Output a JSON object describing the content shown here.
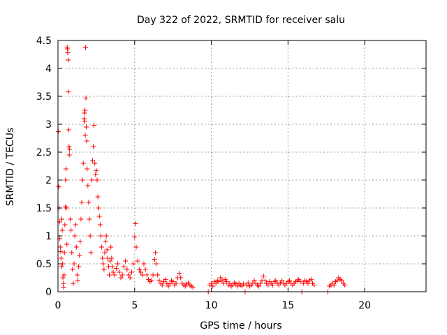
{
  "chart_data": {
    "type": "scatter",
    "title": "Day 322 of 2022, SRMTID for receiver salu",
    "xlabel": "GPS time / hours",
    "ylabel": "SRMTID / TECUs",
    "xlim": [
      0,
      24
    ],
    "ylim": [
      0,
      4.5
    ],
    "xticks": [
      0,
      5,
      10,
      15,
      20
    ],
    "yticks": [
      0,
      0.5,
      1,
      1.5,
      2,
      2.5,
      3,
      3.5,
      4,
      4.5
    ],
    "grid": true,
    "marker": "+",
    "series_color": "#ff0000",
    "series": [
      {
        "name": "SRMTID",
        "points": [
          [
            0.02,
            2.87
          ],
          [
            0.05,
            1.88
          ],
          [
            0.08,
            1.5
          ],
          [
            0.1,
            1.25
          ],
          [
            0.12,
            0.95
          ],
          [
            0.15,
            0.8
          ],
          [
            0.18,
            0.72
          ],
          [
            0.2,
            0.6
          ],
          [
            0.22,
            0.45
          ],
          [
            0.25,
            1.3
          ],
          [
            0.28,
            1.1
          ],
          [
            0.3,
            0.5
          ],
          [
            0.32,
            0.25
          ],
          [
            0.35,
            0.15
          ],
          [
            0.38,
            0.08
          ],
          [
            0.4,
            0.3
          ],
          [
            0.42,
            0.7
          ],
          [
            0.45,
            1.2
          ],
          [
            0.48,
            1.52
          ],
          [
            0.5,
            2.0
          ],
          [
            0.52,
            2.2
          ],
          [
            0.55,
            1.5
          ],
          [
            0.58,
            0.85
          ],
          [
            0.6,
            4.38
          ],
          [
            0.62,
            4.35
          ],
          [
            0.64,
            4.28
          ],
          [
            0.66,
            4.15
          ],
          [
            0.68,
            3.58
          ],
          [
            0.7,
            2.9
          ],
          [
            0.72,
            2.6
          ],
          [
            0.74,
            2.45
          ],
          [
            0.76,
            2.55
          ],
          [
            0.8,
            1.3
          ],
          [
            0.85,
            1.1
          ],
          [
            0.9,
            0.7
          ],
          [
            0.95,
            0.4
          ],
          [
            1.0,
            0.15
          ],
          [
            1.05,
            0.5
          ],
          [
            1.1,
            1.0
          ],
          [
            1.15,
            1.2
          ],
          [
            1.2,
            0.8
          ],
          [
            1.25,
            0.3
          ],
          [
            1.3,
            0.2
          ],
          [
            1.35,
            0.45
          ],
          [
            1.4,
            0.65
          ],
          [
            1.45,
            0.9
          ],
          [
            1.5,
            1.3
          ],
          [
            1.55,
            1.6
          ],
          [
            1.6,
            2.0
          ],
          [
            1.65,
            2.3
          ],
          [
            1.7,
            3.1
          ],
          [
            1.72,
            3.2
          ],
          [
            1.74,
            3.05
          ],
          [
            1.76,
            3.25
          ],
          [
            1.78,
            2.8
          ],
          [
            1.8,
            4.37
          ],
          [
            1.82,
            3.47
          ],
          [
            1.85,
            2.95
          ],
          [
            1.88,
            2.7
          ],
          [
            1.9,
            2.2
          ],
          [
            1.95,
            1.9
          ],
          [
            2.0,
            1.6
          ],
          [
            2.05,
            1.3
          ],
          [
            2.1,
            1.0
          ],
          [
            2.15,
            0.7
          ],
          [
            2.2,
            2.0
          ],
          [
            2.25,
            2.35
          ],
          [
            2.3,
            2.6
          ],
          [
            2.35,
            2.98
          ],
          [
            2.4,
            2.3
          ],
          [
            2.45,
            2.1
          ],
          [
            2.5,
            2.17
          ],
          [
            2.55,
            2.0
          ],
          [
            2.6,
            1.7
          ],
          [
            2.65,
            1.5
          ],
          [
            2.7,
            1.35
          ],
          [
            2.75,
            1.2
          ],
          [
            2.8,
            1.0
          ],
          [
            2.85,
            0.8
          ],
          [
            2.9,
            0.6
          ],
          [
            2.95,
            0.5
          ],
          [
            3.0,
            0.4
          ],
          [
            3.05,
            0.7
          ],
          [
            3.1,
            0.9
          ],
          [
            3.15,
            1.0
          ],
          [
            3.2,
            0.75
          ],
          [
            3.25,
            0.6
          ],
          [
            3.3,
            0.45
          ],
          [
            3.35,
            0.3
          ],
          [
            3.4,
            0.55
          ],
          [
            3.45,
            0.8
          ],
          [
            3.5,
            0.6
          ],
          [
            3.55,
            0.45
          ],
          [
            3.6,
            0.35
          ],
          [
            3.7,
            0.3
          ],
          [
            3.8,
            0.42
          ],
          [
            3.9,
            0.5
          ],
          [
            4.0,
            0.35
          ],
          [
            4.1,
            0.25
          ],
          [
            4.2,
            0.3
          ],
          [
            4.3,
            0.45
          ],
          [
            4.4,
            0.55
          ],
          [
            4.5,
            0.4
          ],
          [
            4.6,
            0.3
          ],
          [
            4.7,
            0.25
          ],
          [
            4.8,
            0.35
          ],
          [
            4.9,
            0.5
          ],
          [
            5.0,
            0.98
          ],
          [
            5.05,
            1.22
          ],
          [
            5.1,
            0.8
          ],
          [
            5.2,
            0.55
          ],
          [
            5.3,
            0.4
          ],
          [
            5.4,
            0.35
          ],
          [
            5.5,
            0.3
          ],
          [
            5.6,
            0.5
          ],
          [
            5.7,
            0.4
          ],
          [
            5.8,
            0.3
          ],
          [
            5.9,
            0.22
          ],
          [
            6.0,
            0.18
          ],
          [
            6.1,
            0.2
          ],
          [
            6.2,
            0.3
          ],
          [
            6.3,
            0.58
          ],
          [
            6.35,
            0.7
          ],
          [
            6.4,
            0.5
          ],
          [
            6.5,
            0.3
          ],
          [
            6.6,
            0.2
          ],
          [
            6.7,
            0.15
          ],
          [
            6.8,
            0.12
          ],
          [
            6.9,
            0.18
          ],
          [
            7.0,
            0.22
          ],
          [
            7.1,
            0.15
          ],
          [
            7.2,
            0.1
          ],
          [
            7.3,
            0.14
          ],
          [
            7.4,
            0.2
          ],
          [
            7.5,
            0.18
          ],
          [
            7.6,
            0.12
          ],
          [
            7.7,
            0.15
          ],
          [
            7.8,
            0.25
          ],
          [
            7.9,
            0.33
          ],
          [
            8.0,
            0.25
          ],
          [
            8.1,
            0.15
          ],
          [
            8.2,
            0.12
          ],
          [
            8.3,
            0.1
          ],
          [
            8.4,
            0.14
          ],
          [
            8.5,
            0.16
          ],
          [
            8.6,
            0.12
          ],
          [
            8.7,
            0.1
          ],
          [
            8.8,
            0.08
          ],
          [
            9.8,
            0.0
          ],
          [
            9.9,
            0.12
          ],
          [
            10.0,
            0.15
          ],
          [
            10.1,
            0.1
          ],
          [
            10.2,
            0.18
          ],
          [
            10.3,
            0.15
          ],
          [
            10.4,
            0.2
          ],
          [
            10.5,
            0.18
          ],
          [
            10.6,
            0.25
          ],
          [
            10.7,
            0.2
          ],
          [
            10.8,
            0.15
          ],
          [
            10.9,
            0.22
          ],
          [
            11.0,
            0.18
          ],
          [
            11.1,
            0.12
          ],
          [
            11.2,
            0.15
          ],
          [
            11.3,
            0.1
          ],
          [
            11.4,
            0.12
          ],
          [
            11.5,
            0.16
          ],
          [
            11.6,
            0.14
          ],
          [
            11.7,
            0.1
          ],
          [
            11.8,
            0.15
          ],
          [
            11.9,
            0.12
          ],
          [
            12.0,
            0.1
          ],
          [
            12.1,
            0.14
          ],
          [
            12.2,
            0.0
          ],
          [
            12.3,
            0.12
          ],
          [
            12.4,
            0.16
          ],
          [
            12.5,
            0.1
          ],
          [
            12.6,
            0.12
          ],
          [
            12.7,
            0.15
          ],
          [
            12.8,
            0.2
          ],
          [
            12.9,
            0.15
          ],
          [
            13.0,
            0.12
          ],
          [
            13.1,
            0.1
          ],
          [
            13.2,
            0.15
          ],
          [
            13.3,
            0.2
          ],
          [
            13.4,
            0.28
          ],
          [
            13.5,
            0.2
          ],
          [
            13.6,
            0.15
          ],
          [
            13.7,
            0.12
          ],
          [
            13.8,
            0.18
          ],
          [
            13.9,
            0.15
          ],
          [
            14.0,
            0.12
          ],
          [
            14.1,
            0.18
          ],
          [
            14.2,
            0.2
          ],
          [
            14.3,
            0.15
          ],
          [
            14.4,
            0.12
          ],
          [
            14.5,
            0.16
          ],
          [
            14.6,
            0.2
          ],
          [
            14.7,
            0.15
          ],
          [
            14.8,
            0.12
          ],
          [
            14.9,
            0.15
          ],
          [
            15.0,
            0.18
          ],
          [
            15.1,
            0.2
          ],
          [
            15.2,
            0.15
          ],
          [
            15.3,
            0.12
          ],
          [
            15.4,
            0.15
          ],
          [
            15.5,
            0.18
          ],
          [
            15.6,
            0.2
          ],
          [
            15.7,
            0.22
          ],
          [
            15.8,
            0.18
          ],
          [
            15.9,
            0.0
          ],
          [
            16.0,
            0.15
          ],
          [
            16.1,
            0.2
          ],
          [
            16.2,
            0.18
          ],
          [
            16.3,
            0.15
          ],
          [
            16.4,
            0.2
          ],
          [
            16.5,
            0.22
          ],
          [
            16.6,
            0.15
          ],
          [
            16.7,
            0.12
          ],
          [
            17.6,
            0.0
          ],
          [
            17.7,
            0.1
          ],
          [
            17.8,
            0.12
          ],
          [
            17.9,
            0.15
          ],
          [
            18.0,
            0.12
          ],
          [
            18.1,
            0.18
          ],
          [
            18.2,
            0.2
          ],
          [
            18.3,
            0.25
          ],
          [
            18.4,
            0.22
          ],
          [
            18.5,
            0.2
          ],
          [
            18.6,
            0.15
          ],
          [
            18.7,
            0.12
          ]
        ]
      }
    ]
  }
}
